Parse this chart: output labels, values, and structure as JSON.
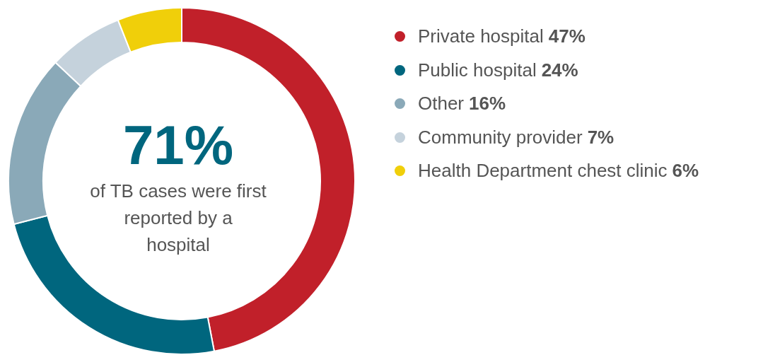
{
  "chart_data": {
    "type": "donut",
    "categories": [
      "Private hospital",
      "Public hospital",
      "Other",
      "Community provider",
      "Health Department chest clinic"
    ],
    "values": [
      47,
      24,
      16,
      7,
      6
    ],
    "colors": [
      "#c1202a",
      "#00667e",
      "#8aa9b8",
      "#c5d2dc",
      "#f0cf0a"
    ],
    "value_labels": [
      "47%",
      "24%",
      "16%",
      "7%",
      "6%"
    ],
    "annotations": [
      "71%",
      "of TB cases were first reported by a hospital"
    ],
    "legend": "right"
  }
}
